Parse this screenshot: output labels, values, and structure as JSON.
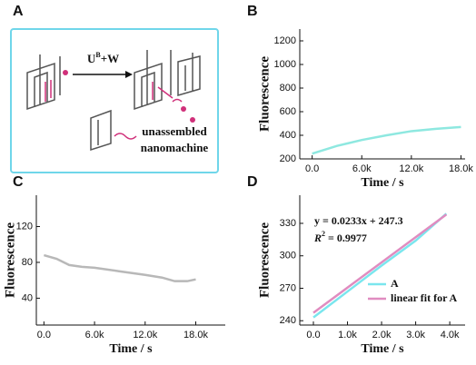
{
  "diagram": {
    "panel_label": "A",
    "reaction": {
      "base": "U",
      "sup": "B",
      "rest": "+W"
    },
    "caption": [
      "unassembled",
      "nanomachine"
    ]
  },
  "chart_data": [
    {
      "type": "line",
      "panel_label": "B",
      "xlabel": "Time / s",
      "ylabel": "Fluorescence",
      "x": [
        0,
        3000,
        6000,
        9000,
        12000,
        15000,
        18000
      ],
      "series": [
        {
          "color": "#8ee8e0",
          "values": [
            245,
            310,
            360,
            400,
            435,
            455,
            470
          ]
        }
      ],
      "xlim": [
        -1500,
        18500
      ],
      "xticks": [
        {
          "value": 0,
          "label": "0.0"
        },
        {
          "value": 6000,
          "label": "6.0k"
        },
        {
          "value": 12000,
          "label": "12.0k"
        },
        {
          "value": 18000,
          "label": "18.0k"
        }
      ],
      "ylim": [
        200,
        1300
      ],
      "yticks": [
        200,
        400,
        600,
        800,
        1000,
        1200
      ]
    },
    {
      "type": "line",
      "panel_label": "C",
      "xlabel": "Time / s",
      "ylabel": "Fluorescence",
      "x": [
        0,
        1500,
        3000,
        4500,
        6000,
        9000,
        12000,
        14000,
        15500,
        17000,
        18000
      ],
      "series": [
        {
          "color": "#b8b8b8",
          "values": [
            88,
            84,
            77,
            75,
            74,
            70,
            66,
            63,
            59,
            59,
            61
          ]
        }
      ],
      "xlim": [
        -900,
        21500
      ],
      "xticks": [
        {
          "value": 0,
          "label": "0.0"
        },
        {
          "value": 6000,
          "label": "6.0k"
        },
        {
          "value": 12000,
          "label": "12.0k"
        },
        {
          "value": 18000,
          "label": "18.0k"
        }
      ],
      "ylim": [
        10,
        155
      ],
      "yticks": [
        40,
        80,
        120
      ]
    },
    {
      "type": "line",
      "panel_label": "D",
      "xlabel": "Time / s",
      "ylabel": "Fluorescence",
      "x": [
        0,
        1000,
        2000,
        3000,
        3900
      ],
      "series": [
        {
          "name": "A",
          "color": "#7ae6ee",
          "values": [
            243,
            267,
            291,
            314,
            339
          ]
        },
        {
          "name": "linear fit for A",
          "color": "#e08cc0",
          "values": [
            247.3,
            270.6,
            293.9,
            317.2,
            338.2
          ]
        }
      ],
      "xlim": [
        -400,
        4450
      ],
      "xticks": [
        {
          "value": 0,
          "label": "0.0"
        },
        {
          "value": 1000,
          "label": "1.0k"
        },
        {
          "value": 2000,
          "label": "2.0k"
        },
        {
          "value": 3000,
          "label": "3.0k"
        },
        {
          "value": 4000,
          "label": "4.0k"
        }
      ],
      "ylim": [
        236,
        356
      ],
      "yticks": [
        240,
        270,
        300,
        330
      ],
      "equation": "y = 0.0233x + 247.3",
      "r2": {
        "symbol": "R",
        "sup": "2",
        "text": "= 0.9977"
      }
    }
  ]
}
